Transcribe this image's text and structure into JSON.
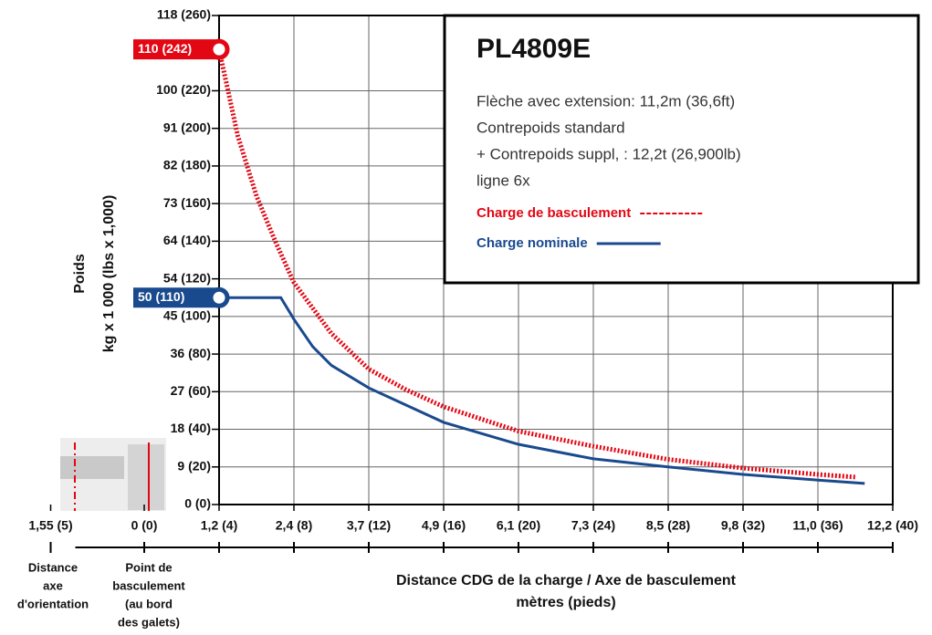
{
  "chart_data": {
    "type": "line",
    "title": "PL4809E",
    "notes": [
      "Flèche avec extension: 11,2m (36,6ft)",
      "Contrepoids standard",
      "+ Contrepoids suppl, : 12,2t (26,900lb)",
      "ligne 6x"
    ],
    "xlabel": [
      "Distance CDG de la charge / Axe de basculement",
      "mètres (pieds)"
    ],
    "ylabel": [
      "Poids",
      "kg x 1 000 (lbs x 1,000)"
    ],
    "annotations": [
      [
        "Distance",
        "axe",
        "d'orientation"
      ],
      [
        "Point de",
        "basculement",
        "(au bord",
        "des galets)"
      ]
    ],
    "xlim": [
      -5,
      40
    ],
    "ylim": [
      0,
      260
    ],
    "grid": true,
    "xticks": [
      {
        "value": -5,
        "label": "1,55 (5)"
      },
      {
        "value": 0,
        "label": "0 (0)"
      },
      {
        "value": 4,
        "label": "1,2 (4)"
      },
      {
        "value": 8,
        "label": "2,4 (8)"
      },
      {
        "value": 12,
        "label": "3,7 (12)"
      },
      {
        "value": 16,
        "label": "4,9 (16)"
      },
      {
        "value": 20,
        "label": "6,1 (20)"
      },
      {
        "value": 24,
        "label": "7,3 (24)"
      },
      {
        "value": 28,
        "label": "8,5 (28)"
      },
      {
        "value": 32,
        "label": "9,8 (32)"
      },
      {
        "value": 36,
        "label": "11,0 (36)"
      },
      {
        "value": 40,
        "label": "12,2 (40)"
      }
    ],
    "yticks": [
      {
        "value": 0,
        "label": "0 (0)"
      },
      {
        "value": 20,
        "label": "9 (20)"
      },
      {
        "value": 40,
        "label": "18 (40)"
      },
      {
        "value": 60,
        "label": "27 (60)"
      },
      {
        "value": 80,
        "label": "36 (80)"
      },
      {
        "value": 100,
        "label": "45 (100)"
      },
      {
        "value": 120,
        "label": "54 (120)"
      },
      {
        "value": 140,
        "label": "64 (140)"
      },
      {
        "value": 160,
        "label": "73 (160)"
      },
      {
        "value": 180,
        "label": "82 (180)"
      },
      {
        "value": 200,
        "label": "91 (200)"
      },
      {
        "value": 220,
        "label": "100 (220)"
      },
      {
        "value": 260,
        "label": "118 (260)"
      }
    ],
    "markers": [
      {
        "value": 242,
        "label": "110 (242)",
        "color": "#e30613"
      },
      {
        "value": 110,
        "label": "50 (110)",
        "color": "#1a4a8e"
      }
    ],
    "series": [
      {
        "name": "Charge de basculement",
        "color": "#e30613",
        "style": "dotted",
        "x": [
          4,
          5,
          6,
          7,
          8,
          10,
          12,
          14,
          16,
          20,
          24,
          28,
          32,
          36,
          38
        ],
        "values": [
          242,
          196,
          164,
          140,
          118,
          91,
          72,
          61,
          52,
          39,
          31,
          24,
          19.4,
          16,
          14.6
        ]
      },
      {
        "name": "Charge nominale",
        "color": "#1a4a8e",
        "style": "solid",
        "x": [
          4,
          7.3,
          8,
          9,
          10,
          12,
          16,
          20,
          24,
          28,
          32,
          36,
          38.5
        ],
        "values": [
          110,
          110,
          98.5,
          84,
          74,
          62,
          43.7,
          32,
          24.3,
          20,
          16,
          13,
          11.2
        ]
      }
    ]
  }
}
